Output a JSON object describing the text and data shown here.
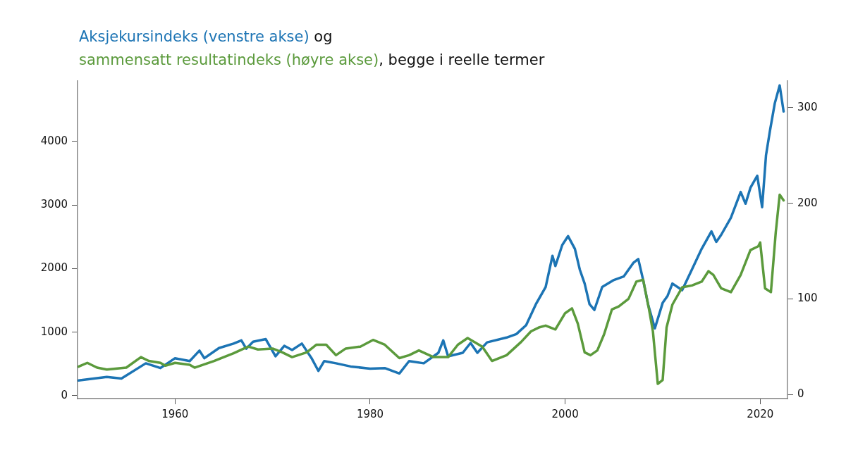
{
  "chart_data": {
    "type": "line",
    "legend": "top left",
    "annotations": [
      "og",
      ", begge i reelle termer"
    ],
    "xlim": [
      1950,
      2022.8
    ],
    "xticks": [
      1960,
      1980,
      2000,
      2020
    ],
    "ylim": [
      -45,
      4950
    ],
    "yticks": [
      0,
      1000,
      2000,
      3000,
      4000
    ],
    "y2lim": [
      -4.4,
      328
    ],
    "y2ticks": [
      0,
      100,
      200,
      300
    ],
    "grid": false,
    "marker": "none",
    "line_style": "solid",
    "series": [
      {
        "name": "Aksjekursindeks (venstre akse)",
        "color": "#1c74b4",
        "x": [
          1950.1,
          1953,
          1954.5,
          1957,
          1958.5,
          1960,
          1961.5,
          1962.5,
          1963,
          1964.5,
          1966,
          1966.8,
          1967.3,
          1968,
          1969.3,
          1970.3,
          1971.2,
          1972,
          1973,
          1974,
          1974.7,
          1975.3,
          1976.5,
          1978,
          1980,
          1981.5,
          1983,
          1984,
          1985.5,
          1987,
          1987.5,
          1988,
          1989.5,
          1990.3,
          1991,
          1992,
          1994,
          1995,
          1996,
          1997,
          1998,
          1998.7,
          1999,
          1999.7,
          2000.3,
          2001,
          2001.5,
          2002,
          2002.5,
          2003,
          2003.8,
          2005,
          2006,
          2007,
          2007.5,
          2008,
          2008.5,
          2009.2,
          2010,
          2010.5,
          2011,
          2012,
          2013,
          2014,
          2015,
          2015.5,
          2016,
          2017,
          2018,
          2018.5,
          2019,
          2019.7,
          2020.2,
          2020.6,
          2021,
          2021.5,
          2022,
          2022.4
        ],
        "values": [
          240,
          295,
          270,
          510,
          435,
          590,
          545,
          710,
          590,
          750,
          820,
          870,
          740,
          850,
          890,
          620,
          785,
          720,
          820,
          590,
          390,
          545,
          510,
          460,
          425,
          435,
          350,
          545,
          510,
          675,
          870,
          620,
          675,
          830,
          675,
          840,
          915,
          970,
          1110,
          1440,
          1710,
          2200,
          2040,
          2370,
          2510,
          2310,
          1985,
          1765,
          1440,
          1350,
          1710,
          1820,
          1875,
          2090,
          2150,
          1820,
          1440,
          1060,
          1460,
          1570,
          1765,
          1660,
          1985,
          2310,
          2585,
          2420,
          2530,
          2800,
          3205,
          3020,
          3270,
          3460,
          2965,
          3785,
          4165,
          4600,
          4880,
          4470
        ]
      },
      {
        "name": "sammensatt resultatindeks (høyre akse)",
        "color": "#5b9a3c",
        "axis": "y2",
        "x": [
          1950.1,
          1951,
          1952,
          1953,
          1955,
          1956.5,
          1957.3,
          1958.5,
          1959,
          1960,
          1961.5,
          1962,
          1964,
          1966,
          1967.5,
          1968.5,
          1970,
          1971,
          1972,
          1973.5,
          1974.5,
          1975.5,
          1976.5,
          1977.5,
          1979,
          1980.3,
          1981.5,
          1983,
          1984,
          1985,
          1986.5,
          1988,
          1989,
          1990,
          1991.5,
          1992.5,
          1994,
          1995.5,
          1996.5,
          1997.3,
          1998,
          1999,
          2000,
          2000.7,
          2001.3,
          2002,
          2002.6,
          2003.3,
          2004,
          2004.8,
          2005.5,
          2006.5,
          2007.3,
          2008,
          2008.6,
          2009,
          2009.5,
          2010,
          2010.4,
          2011,
          2012,
          2013,
          2014,
          2014.7,
          2015.2,
          2016,
          2017,
          2018,
          2019,
          2019.8,
          2020,
          2020.5,
          2021.1,
          2021.6,
          2022,
          2022.4
        ],
        "values": [
          29,
          33,
          28,
          26,
          28,
          39,
          35,
          33,
          30,
          33,
          31,
          28,
          35,
          43,
          50,
          47,
          48,
          44,
          39,
          44,
          52,
          52,
          41,
          48,
          50,
          57,
          52,
          38,
          41,
          46,
          39,
          39,
          52,
          59,
          50,
          35,
          41,
          55,
          66,
          70,
          72,
          68,
          85,
          90,
          74,
          44,
          41,
          46,
          63,
          89,
          92,
          100,
          118,
          120,
          89,
          66,
          11,
          15,
          70,
          94,
          112,
          114,
          118,
          129,
          125,
          111,
          107,
          125,
          151,
          155,
          159,
          111,
          107,
          170,
          209,
          203
        ]
      }
    ]
  }
}
